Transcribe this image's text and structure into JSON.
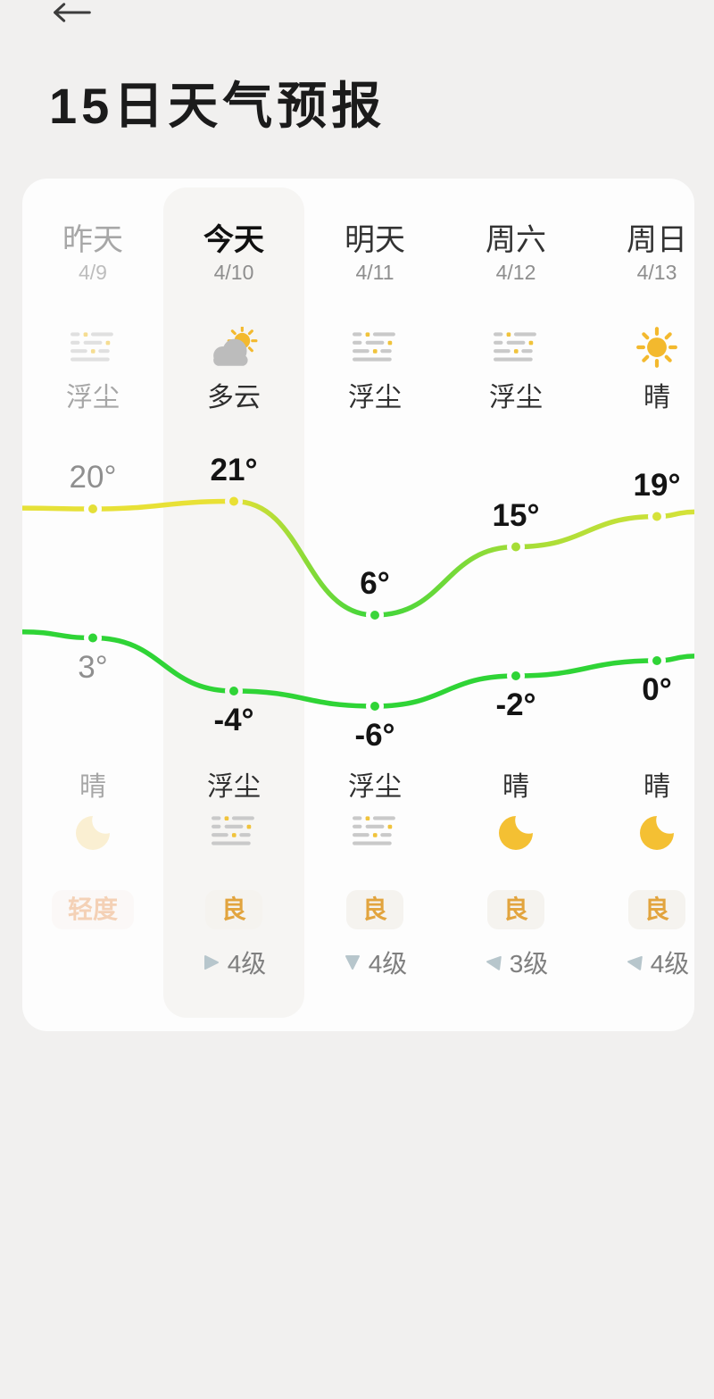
{
  "header": {
    "title": "15日天气预报",
    "back_icon": "left-arrow"
  },
  "days": [
    {
      "name": "昨天",
      "date": "4/9",
      "day_condition": "浮尘",
      "day_icon": "dust",
      "night_condition": "晴",
      "night_icon": "moon",
      "aqi": "轻度",
      "aqi_level": "moderate",
      "wind": "",
      "wind_dir": "",
      "is_past": true,
      "is_today": false
    },
    {
      "name": "今天",
      "date": "4/10",
      "day_condition": "多云",
      "day_icon": "cloud-sun",
      "night_condition": "浮尘",
      "night_icon": "dust",
      "aqi": "良",
      "aqi_level": "good",
      "wind": "4级",
      "wind_dir": "right",
      "is_past": false,
      "is_today": true
    },
    {
      "name": "明天",
      "date": "4/11",
      "day_condition": "浮尘",
      "day_icon": "dust",
      "night_condition": "浮尘",
      "night_icon": "dust",
      "aqi": "良",
      "aqi_level": "good",
      "wind": "4级",
      "wind_dir": "down",
      "is_past": false,
      "is_today": false
    },
    {
      "name": "周六",
      "date": "4/12",
      "day_condition": "浮尘",
      "day_icon": "dust",
      "night_condition": "晴",
      "night_icon": "moon",
      "aqi": "良",
      "aqi_level": "good",
      "wind": "3级",
      "wind_dir": "left",
      "is_past": false,
      "is_today": false
    },
    {
      "name": "周日",
      "date": "4/13",
      "day_condition": "晴",
      "day_icon": "sun",
      "night_condition": "晴",
      "night_icon": "moon",
      "aqi": "良",
      "aqi_level": "good",
      "wind": "4级",
      "wind_dir": "left",
      "is_past": false,
      "is_today": false
    }
  ],
  "chart_data": {
    "type": "line",
    "categories": [
      "昨天",
      "今天",
      "明天",
      "周六",
      "周日"
    ],
    "category_dates": [
      "4/9",
      "4/10",
      "4/11",
      "4/12",
      "4/13"
    ],
    "series": [
      {
        "name": "day-high-temp",
        "values": [
          20,
          21,
          6,
          15,
          19
        ],
        "labels": [
          "20°",
          "21°",
          "6°",
          "15°",
          "19°"
        ]
      },
      {
        "name": "night-low-temp",
        "values": [
          3,
          -4,
          -6,
          -2,
          0
        ],
        "labels": [
          "3°",
          "-4°",
          "-6°",
          "-2°",
          "0°"
        ]
      }
    ],
    "unit": "°",
    "legend": "none",
    "grid": false,
    "label_position": {
      "day-high-temp": "above-point",
      "night-low-temp": "below-point"
    },
    "style_note": "smooth curves, dot at each point with gap in line, line color shifts yellow(warm) to green(cold)"
  },
  "colors": {
    "page_bg": "#f1f0ef",
    "card_bg": "#fdfdfd",
    "today_col_bg": "#f6f5f3",
    "high_line_gradient": [
      "#e6e138",
      "#e9e135",
      "#3bd53b",
      "#a4dd37",
      "#d6e239"
    ],
    "high_dot_colors": [
      "#e4df38",
      "#e9e034",
      "#3bd53b",
      "#a6dd36",
      "#d6e239"
    ],
    "low_line": "#2fd436",
    "sun": "#f3b92e",
    "moon": "#f4c033",
    "moon_past": "#f8e5af",
    "dust_gray": "#c9c9c9",
    "dust_yellow": "#f0c33c",
    "cloud_gray": "#bcbcbc",
    "aqi_good_text": "#e2a43e",
    "aqi_good_bg": "#f5f3ef",
    "aqi_moderate_text": "#f2c7a5",
    "aqi_moderate_bg": "#fbf8f6",
    "wind_triangle": "#b7c6cc"
  }
}
